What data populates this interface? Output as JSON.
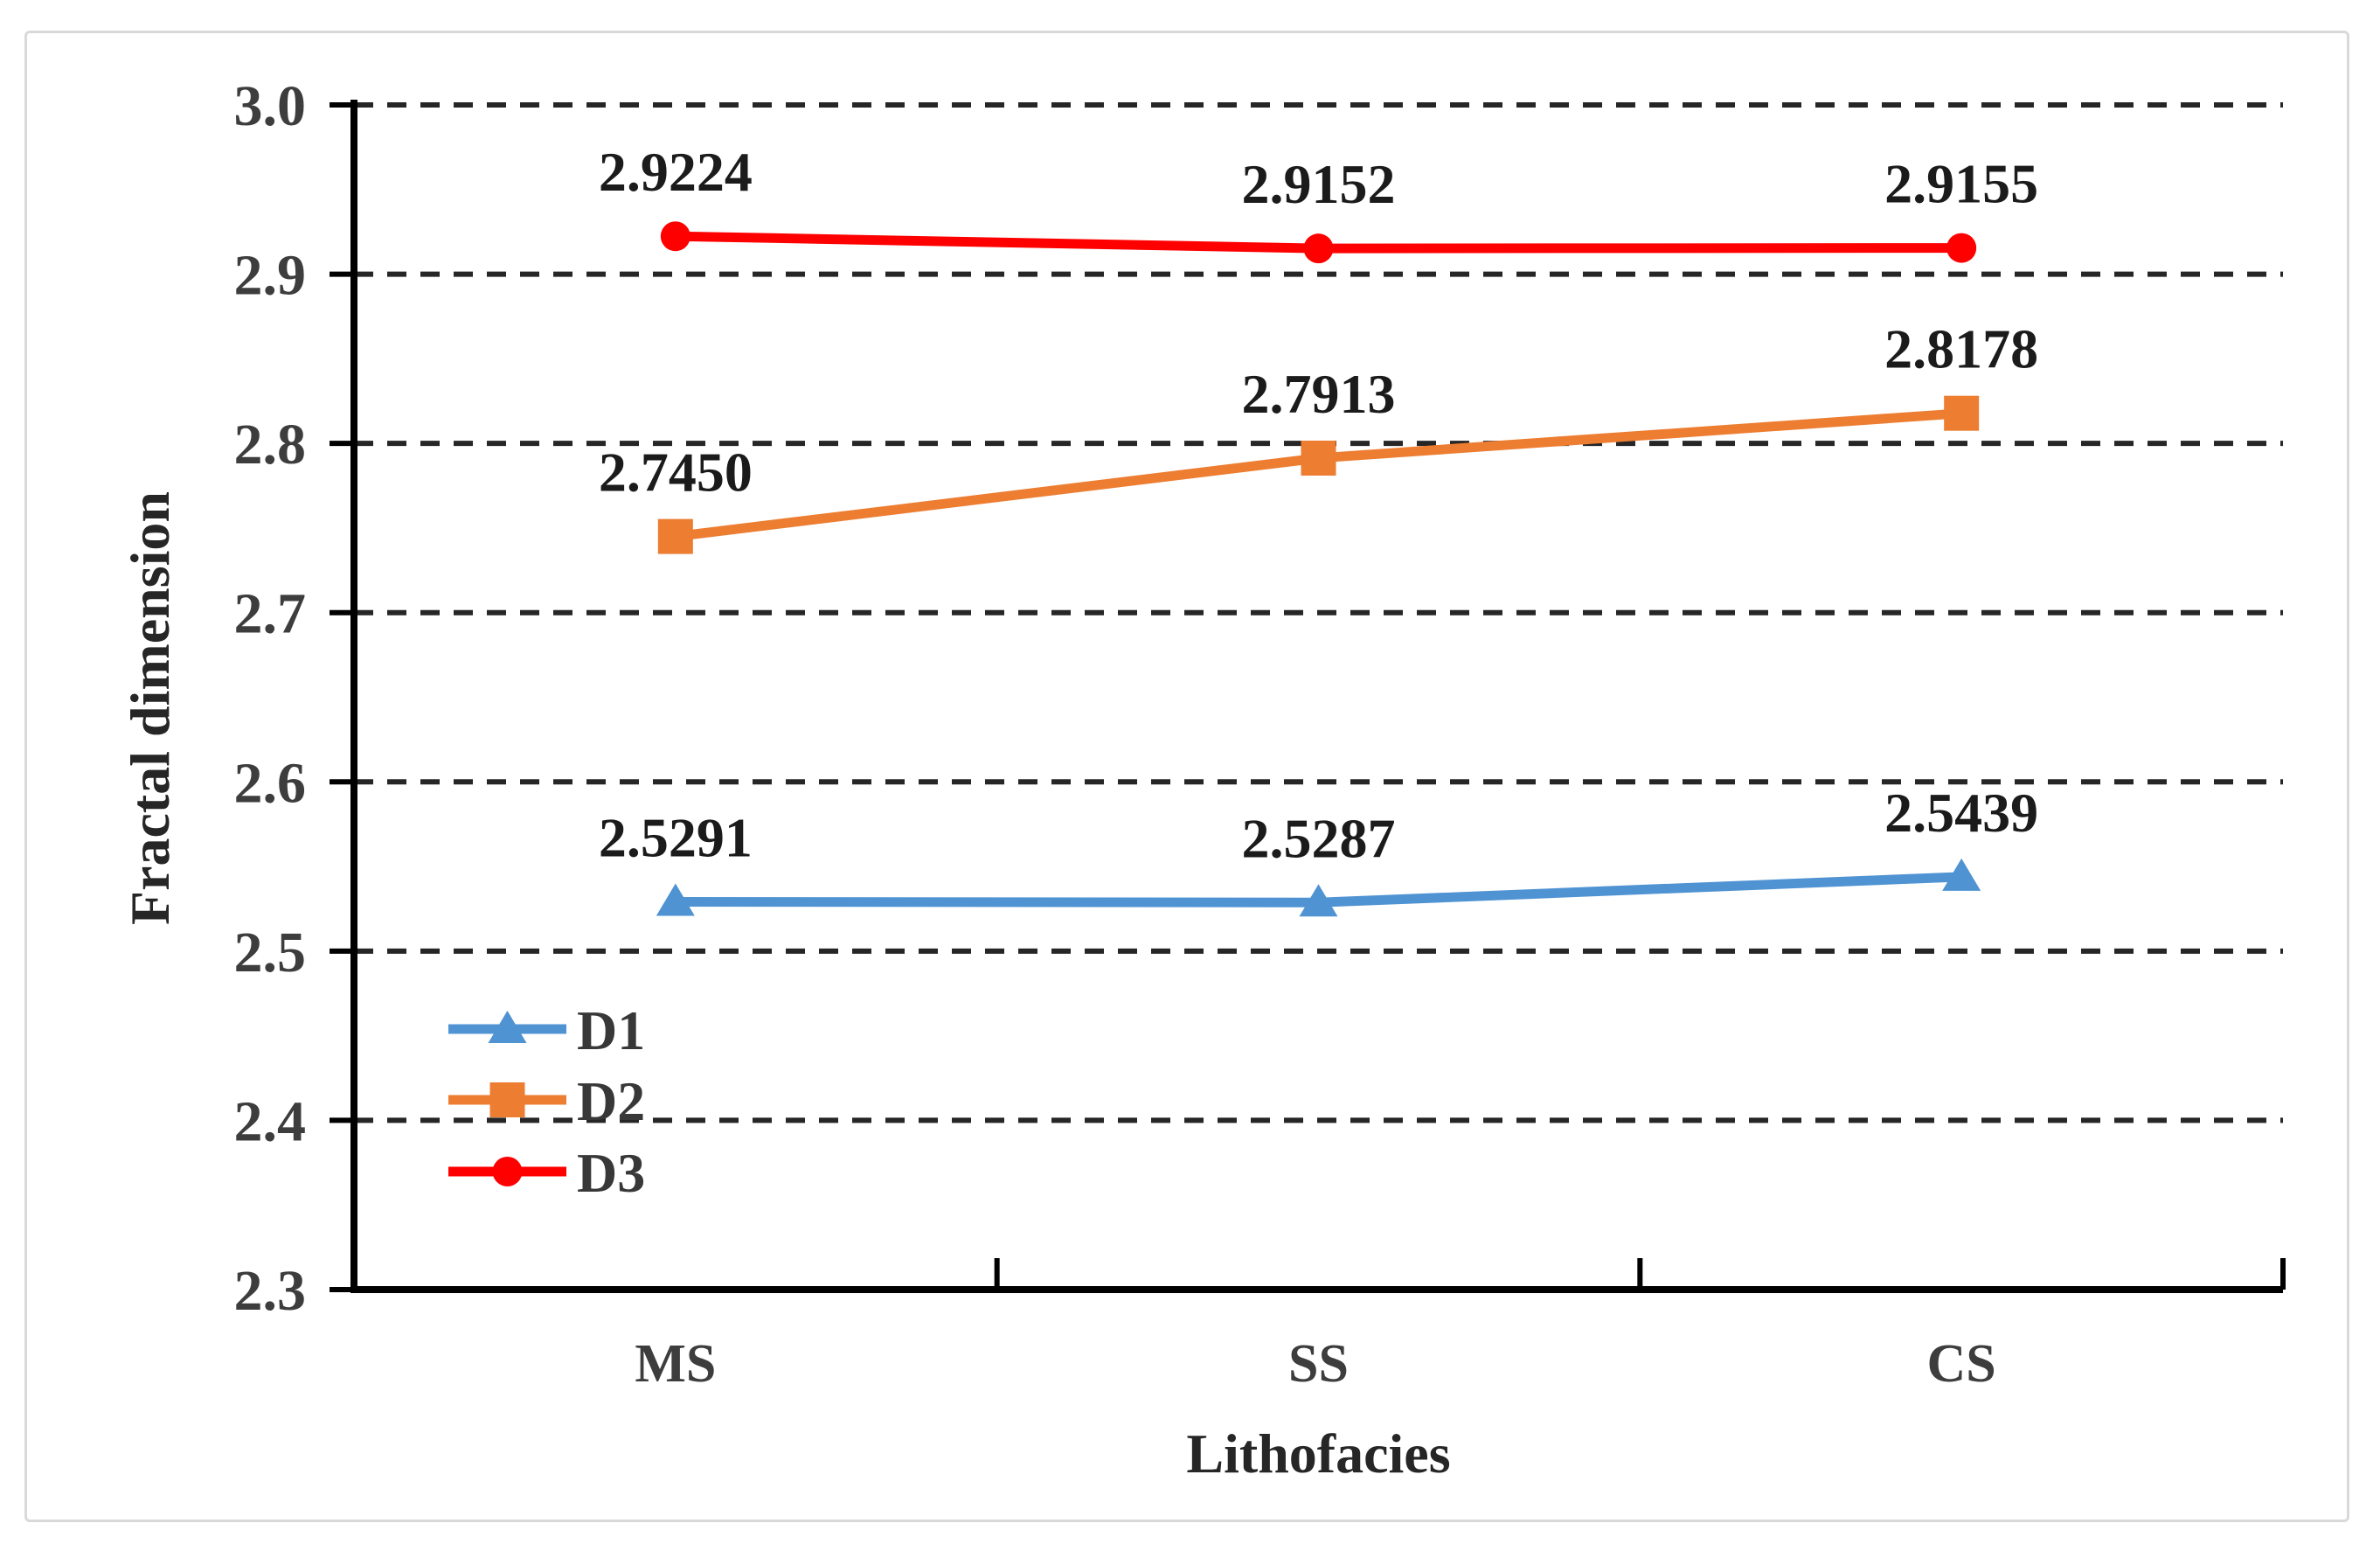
{
  "figure": {
    "background_color": "#ffffff",
    "frame_color": "#d9d9d9"
  },
  "chart_data": {
    "type": "line",
    "title": "",
    "xlabel": "Lithofacies",
    "ylabel": "Fractal dimension",
    "categories": [
      "MS",
      "SS",
      "CS"
    ],
    "series": [
      {
        "name": "D1",
        "color": "#4F93D3",
        "marker": "triangle",
        "values": [
          2.5291,
          2.5287,
          2.5439
        ],
        "labels": [
          "2.5291",
          "2.5287",
          "2.5439"
        ]
      },
      {
        "name": "D2",
        "color": "#ED7D31",
        "marker": "square",
        "values": [
          2.745,
          2.7913,
          2.8178
        ],
        "labels": [
          "2.7450",
          "2.7913",
          "2.8178"
        ]
      },
      {
        "name": "D3",
        "color": "#FF0000",
        "marker": "circle",
        "values": [
          2.9224,
          2.9152,
          2.9155
        ],
        "labels": [
          "2.9224",
          "2.9152",
          "2.9155"
        ]
      }
    ],
    "ylim": [
      2.3,
      3.0
    ],
    "yticks": [
      2.3,
      2.4,
      2.5,
      2.6,
      2.7,
      2.8,
      2.9,
      3.0
    ],
    "ytick_labels": [
      "2.3",
      "2.4",
      "2.5",
      "2.6",
      "2.7",
      "2.8",
      "2.9",
      "3.0"
    ],
    "grid": "dashed-horizontal",
    "legend_position": "inside-lower-left",
    "legend": [
      "D1",
      "D2",
      "D3"
    ],
    "style": {
      "axis_color": "#000000",
      "grid_color": "#262626",
      "tick_label_color": "#3d3d3d",
      "data_label_color": "#1b1b1b",
      "category_label_color": "#3d3d3d",
      "legend_label_color": "#383838"
    }
  }
}
